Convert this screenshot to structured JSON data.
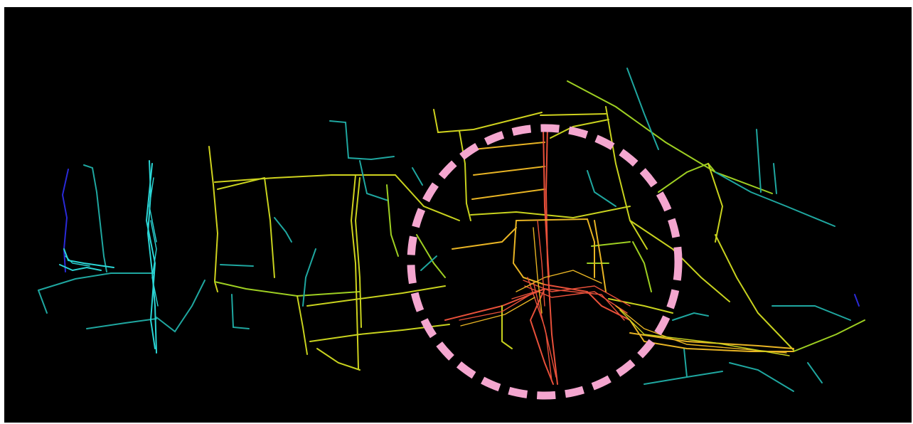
{
  "image": {
    "background_color": "#000000",
    "page_color": "#ffffff",
    "highlight": {
      "shape": "dashed-circle",
      "color": "#f4a6cf"
    },
    "trajectory_color_scale": [
      "#2a2ad8",
      "#2bd6d6",
      "#c8d21e",
      "#e8b424",
      "#e8503a"
    ]
  }
}
